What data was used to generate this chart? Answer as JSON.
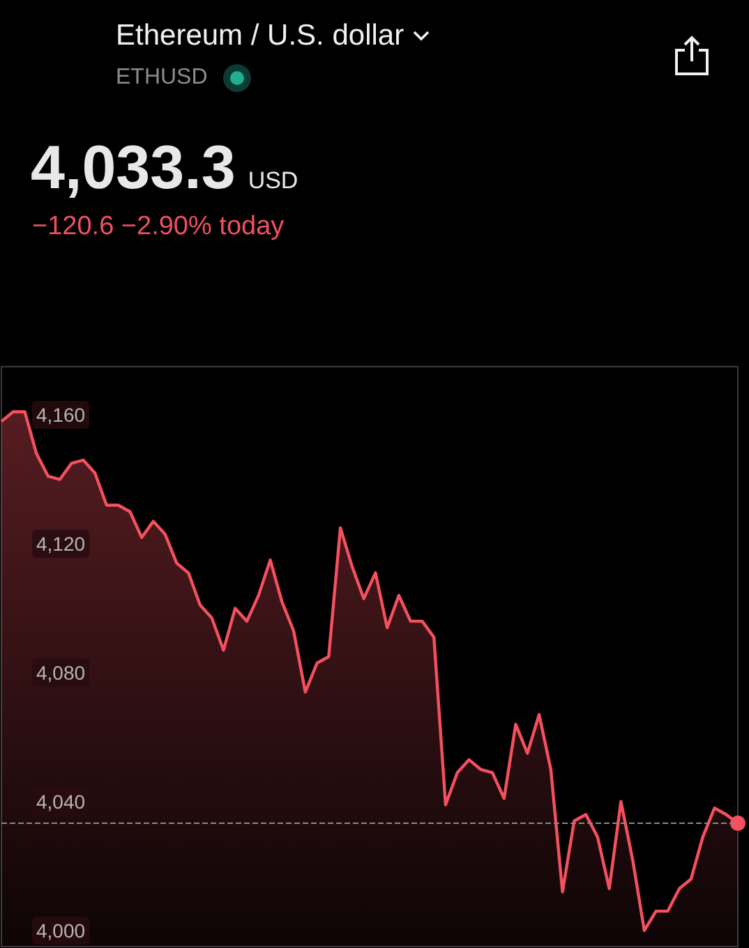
{
  "chart_data": {
    "type": "area",
    "title": "Ethereum / U.S. dollar",
    "subtitle": "ETHUSD",
    "annotations": [
      "4,033.3",
      "USD",
      "−120.6 −2.90% today"
    ],
    "categories": [
      null,
      null,
      null,
      null,
      null,
      null,
      null,
      null,
      null,
      null,
      null,
      null,
      null,
      null,
      null,
      null,
      null,
      null,
      null,
      null,
      null,
      null,
      null,
      null,
      null,
      null,
      null,
      null,
      null,
      null,
      null,
      null,
      null,
      null,
      null,
      null,
      null,
      null,
      null,
      null,
      null,
      null,
      null,
      null,
      null,
      null,
      null,
      null,
      null,
      null,
      null,
      null,
      null,
      null,
      null,
      null,
      null,
      null,
      null,
      null,
      null,
      null,
      null,
      null
    ],
    "series": [
      {
        "color": "#f4505e",
        "values": [
          4158,
          4161,
          4161,
          4148,
          4141,
          4140,
          4145,
          4146,
          4142,
          4132,
          4132,
          4130,
          4122,
          4127,
          4123,
          4114,
          4111,
          4101,
          4097,
          4087,
          4100,
          4096,
          4104,
          4115,
          4102,
          4093,
          4074,
          4083,
          4085,
          4125,
          4113,
          4103,
          4111,
          4094,
          4104,
          4096,
          4096,
          4091,
          4039,
          4049,
          4053,
          4050,
          4049,
          4041,
          4064,
          4055,
          4067,
          4050,
          4012,
          4034,
          4036,
          4029,
          4013,
          4040,
          4022,
          4000,
          4006,
          4006,
          4013,
          4016,
          4029,
          4038,
          4036,
          4033.3
        ]
      }
    ],
    "ylim": [
      3995,
      4175
    ],
    "yticks": [
      {
        "value": 4000,
        "label": "4,000"
      },
      {
        "value": 4040,
        "label": "4,040"
      },
      {
        "value": 4080,
        "label": "4,080"
      },
      {
        "value": 4120,
        "label": "4,120"
      },
      {
        "value": 4160,
        "label": "4,160"
      }
    ],
    "tick_labels": "y",
    "grid": false,
    "ref_lines": [
      {
        "axis": "y",
        "value": 4033.3,
        "line_style": "dashed",
        "color": "#8a8a8a"
      }
    ]
  }
}
